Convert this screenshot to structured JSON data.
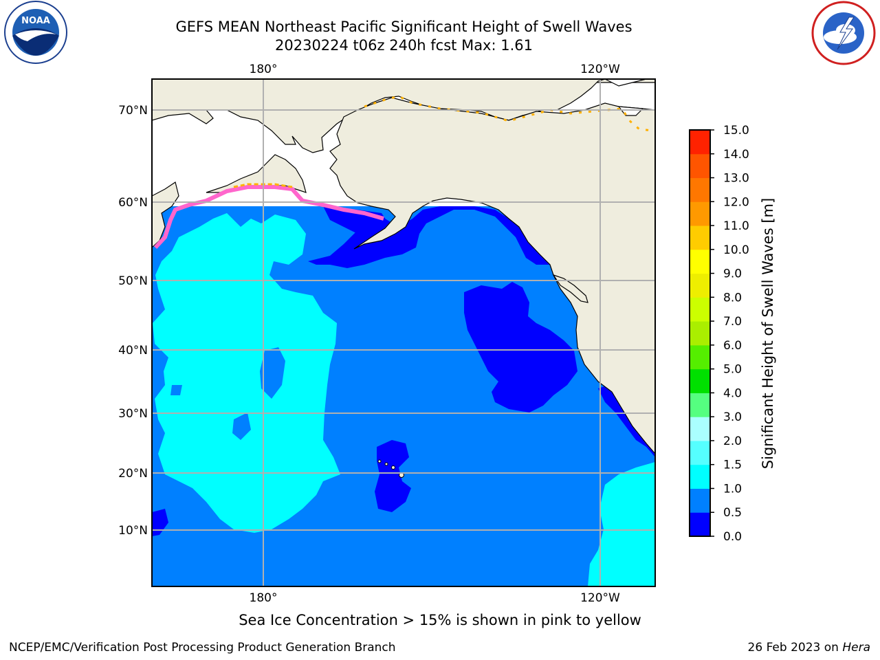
{
  "header": {
    "title_line1": "GEFS MEAN Northeast Pacific Significant Height of Swell Waves",
    "title_line2": "20230224 t06z 240h fcst   Max: 1.61"
  },
  "logos": {
    "left": "NOAA",
    "right": "NATIONAL WEATHER SERVICE"
  },
  "map": {
    "top_lon_labels": [
      "180°",
      "120°W"
    ],
    "bottom_lon_labels": [
      "180°",
      "120°W"
    ],
    "lat_labels": [
      "70°N",
      "60°N",
      "50°N",
      "40°N",
      "30°N",
      "20°N",
      "10°N"
    ],
    "colors": {
      "land": "#efedde",
      "ocean_0_5_1_0": "#0080ff",
      "ocean_0_0_0_5": "#0000ff",
      "ocean_1_0_1_5": "#00ffff",
      "grid": "#b0b0b0",
      "ice_pink": "#ff66cc",
      "ice_orange": "#ffb000"
    }
  },
  "colorbar": {
    "label": "Significant Height of Swell Waves [m]",
    "ticks": [
      "0.0",
      "0.5",
      "1.0",
      "1.5",
      "2.0",
      "3.0",
      "4.0",
      "5.0",
      "6.0",
      "7.0",
      "8.0",
      "9.0",
      "10.0",
      "11.0",
      "12.0",
      "13.0",
      "14.0",
      "15.0"
    ],
    "colors": [
      "#0000ff",
      "#0080ff",
      "#00ffff",
      "#55ffff",
      "#aaffff",
      "#55ff80",
      "#00e000",
      "#55ee00",
      "#aaee00",
      "#ccff00",
      "#eeee00",
      "#ffff00",
      "#ffcc00",
      "#ff9900",
      "#ff7700",
      "#ff5500",
      "#ff2200"
    ]
  },
  "footer": {
    "note": "Sea Ice Concentration > 15% is shown in pink to yellow",
    "left": "NCEP/EMC/Verification Post Processing Product Generation Branch",
    "right_date": "26 Feb 2023 on ",
    "right_host": "Hera"
  }
}
